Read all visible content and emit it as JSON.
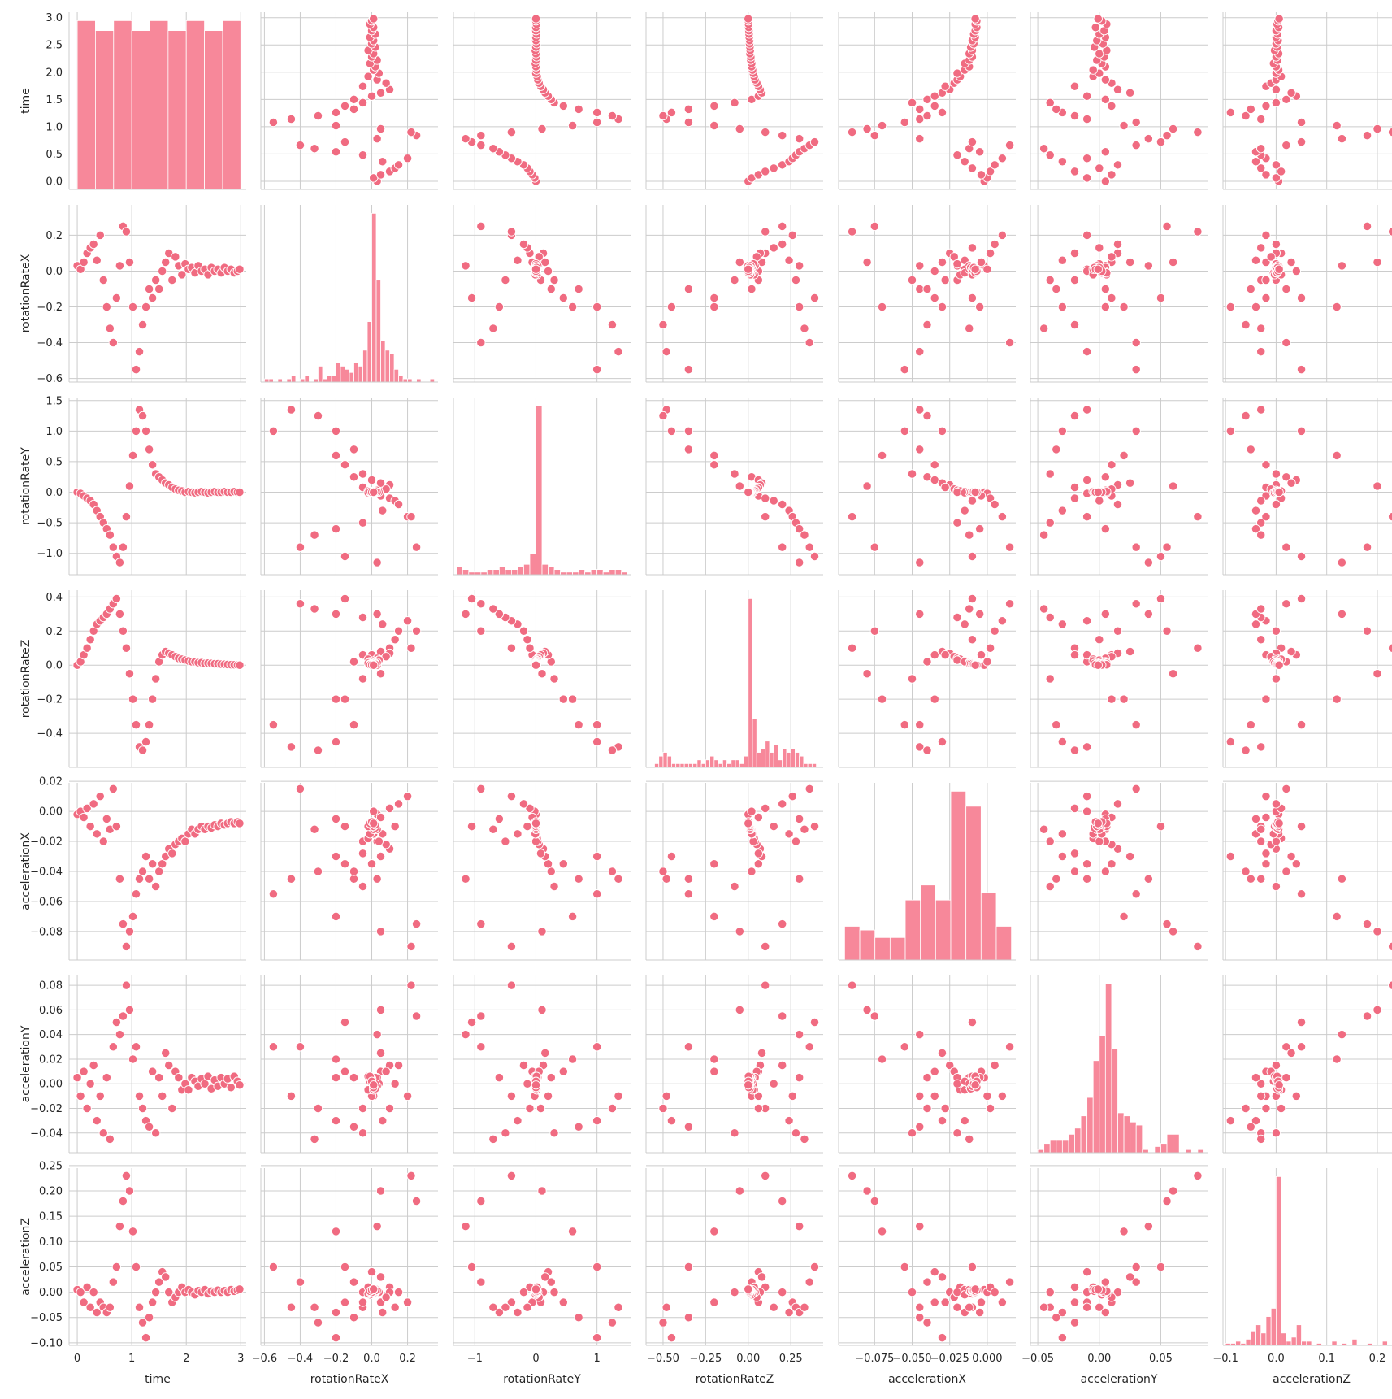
{
  "chart_data": {
    "type": "scatter",
    "kind": "pairplot",
    "diagonal": "hist",
    "grid": true,
    "color": "#f06b81",
    "hist_color": "#f7889a",
    "variables": [
      "time",
      "rotationRateX",
      "rotationRateY",
      "rotationRateZ",
      "accelerationX",
      "accelerationY",
      "accelerationZ"
    ],
    "axes": {
      "time": {
        "lim": [
          -0.15,
          3.1
        ],
        "ticks": [
          0,
          1,
          2,
          3
        ],
        "tick_labels": [
          "0",
          "1",
          "2",
          "3"
        ],
        "row_ticks": [
          0.0,
          0.5,
          1.0,
          1.5,
          2.0,
          2.5,
          3.0
        ],
        "row_tick_labels": [
          "0.0",
          "0.5",
          "1.0",
          "1.5",
          "2.0",
          "2.5",
          "3.0"
        ]
      },
      "rotationRateX": {
        "lim": [
          -0.62,
          0.37
        ],
        "ticks": [
          -0.6,
          -0.4,
          -0.2,
          0.0,
          0.2
        ],
        "tick_labels": [
          "−0.6",
          "−0.4",
          "−0.2",
          "0.0",
          "0.2"
        ],
        "row_ticks": [
          -0.6,
          -0.4,
          -0.2,
          0.0,
          0.2
        ],
        "row_tick_labels": [
          "−0.6",
          "−0.4",
          "−0.2",
          "0.0",
          "0.2"
        ]
      },
      "rotationRateY": {
        "lim": [
          -1.35,
          1.55
        ],
        "ticks": [
          -1,
          0,
          1
        ],
        "tick_labels": [
          "−1",
          "0",
          "1"
        ],
        "row_ticks": [
          -1.0,
          -0.5,
          0.0,
          0.5,
          1.0,
          1.5
        ],
        "row_tick_labels": [
          "−1.0",
          "−0.5",
          "0.0",
          "0.5",
          "1.0",
          "1.5"
        ]
      },
      "rotationRateZ": {
        "lim": [
          -0.6,
          0.44
        ],
        "ticks": [
          -0.5,
          -0.25,
          0.0,
          0.25
        ],
        "tick_labels": [
          "−0.50",
          "−0.25",
          "0.00",
          "0.25"
        ],
        "row_ticks": [
          -0.4,
          -0.2,
          0.0,
          0.2,
          0.4
        ],
        "row_tick_labels": [
          "−0.4",
          "−0.2",
          "0.0",
          "0.2",
          "0.4"
        ]
      },
      "accelerationX": {
        "lim": [
          -0.099,
          0.019
        ],
        "ticks": [
          -0.075,
          -0.05,
          -0.025,
          0.0
        ],
        "tick_labels": [
          "−0.075",
          "−0.050",
          "−0.025",
          "0.000"
        ],
        "row_ticks": [
          -0.08,
          -0.06,
          -0.04,
          -0.02,
          0.0,
          0.02
        ],
        "row_tick_labels": [
          "−0.08",
          "−0.06",
          "−0.04",
          "−0.02",
          "0.00",
          "0.02"
        ]
      },
      "accelerationY": {
        "lim": [
          -0.056,
          0.088
        ],
        "ticks": [
          -0.05,
          0.0,
          0.05
        ],
        "tick_labels": [
          "−0.05",
          "0.00",
          "0.05"
        ],
        "row_ticks": [
          -0.04,
          -0.02,
          0.0,
          0.02,
          0.04,
          0.06,
          0.08
        ],
        "row_tick_labels": [
          "−0.04",
          "−0.02",
          "0.00",
          "0.02",
          "0.04",
          "0.06",
          "0.08"
        ]
      },
      "accelerationZ": {
        "lim": [
          -0.105,
          0.245
        ],
        "ticks": [
          -0.1,
          0.0,
          0.1,
          0.2
        ],
        "tick_labels": [
          "−0.1",
          "0.0",
          "0.1",
          "0.2"
        ],
        "row_ticks": [
          -0.1,
          -0.05,
          0.0,
          0.05,
          0.1,
          0.15,
          0.2,
          0.25
        ],
        "row_tick_labels": [
          "−0.10",
          "−0.05",
          "0.00",
          "0.05",
          "0.10",
          "0.15",
          "0.20",
          "0.25"
        ]
      }
    },
    "histograms": {
      "time": {
        "edges": [
          0.0,
          0.3333,
          0.6667,
          1.0,
          1.3333,
          1.6667,
          2.0,
          2.3333,
          2.6667,
          3.0
        ],
        "counts": [
          17,
          16,
          17,
          16,
          17,
          16,
          17,
          16,
          17
        ]
      },
      "rotationRateX": {
        "edges": [
          -0.6,
          -0.575,
          -0.55,
          -0.525,
          -0.5,
          -0.475,
          -0.45,
          -0.425,
          -0.4,
          -0.375,
          -0.35,
          -0.325,
          -0.3,
          -0.275,
          -0.25,
          -0.225,
          -0.2,
          -0.175,
          -0.15,
          -0.125,
          -0.1,
          -0.075,
          -0.05,
          -0.025,
          0.0,
          0.025,
          0.05,
          0.075,
          0.1,
          0.125,
          0.15,
          0.175,
          0.2,
          0.225,
          0.25,
          0.275,
          0.3,
          0.325,
          0.35
        ],
        "counts": [
          1,
          1,
          0,
          1,
          0,
          1,
          2,
          0,
          1,
          2,
          0,
          1,
          5,
          1,
          2,
          2,
          6,
          5,
          4,
          3,
          6,
          5,
          10,
          19,
          53,
          32,
          13,
          10,
          9,
          4,
          2,
          1,
          1,
          0,
          1,
          0,
          0,
          1
        ]
      },
      "rotationRateY": {
        "edges": [
          -1.3,
          -1.2,
          -1.1,
          -1.0,
          -0.9,
          -0.8,
          -0.7,
          -0.6,
          -0.5,
          -0.4,
          -0.3,
          -0.2,
          -0.1,
          0.0,
          0.1,
          0.2,
          0.3,
          0.4,
          0.5,
          0.6,
          0.7,
          0.8,
          0.9,
          1.0,
          1.1,
          1.2,
          1.3,
          1.4,
          1.5
        ],
        "counts": [
          3,
          2,
          1,
          1,
          1,
          2,
          2,
          3,
          2,
          2,
          3,
          4,
          8,
          65,
          4,
          3,
          2,
          1,
          1,
          1,
          2,
          1,
          2,
          2,
          1,
          2,
          2,
          1
        ]
      },
      "rotationRateZ": {
        "edges": [
          -0.55,
          -0.525,
          -0.5,
          -0.475,
          -0.45,
          -0.425,
          -0.4,
          -0.375,
          -0.35,
          -0.325,
          -0.3,
          -0.275,
          -0.25,
          -0.225,
          -0.2,
          -0.175,
          -0.15,
          -0.125,
          -0.1,
          -0.075,
          -0.05,
          -0.025,
          0.0,
          0.025,
          0.05,
          0.075,
          0.1,
          0.125,
          0.15,
          0.175,
          0.2,
          0.225,
          0.25,
          0.275,
          0.3,
          0.325,
          0.35,
          0.375,
          0.4
        ],
        "counts": [
          1,
          3,
          4,
          3,
          1,
          1,
          1,
          1,
          1,
          1,
          2,
          1,
          2,
          3,
          2,
          1,
          2,
          1,
          2,
          2,
          1,
          3,
          45,
          13,
          4,
          5,
          7,
          4,
          6,
          2,
          5,
          4,
          5,
          4,
          3,
          1,
          1,
          1
        ]
      },
      "accelerationX": {
        "edges": [
          -0.095,
          -0.0849,
          -0.0748,
          -0.0647,
          -0.0546,
          -0.0445,
          -0.0344,
          -0.0243,
          -0.0142,
          -0.0041,
          0.006,
          0.0161
        ],
        "counts": [
          9,
          8,
          6,
          6,
          16,
          20,
          16,
          45,
          41,
          18,
          9
        ]
      },
      "accelerationY": {
        "edges": [
          -0.05,
          -0.045,
          -0.04,
          -0.035,
          -0.03,
          -0.025,
          -0.02,
          -0.015,
          -0.01,
          -0.005,
          0.0,
          0.005,
          0.01,
          0.015,
          0.02,
          0.025,
          0.03,
          0.035,
          0.04,
          0.045,
          0.05,
          0.055,
          0.06,
          0.065,
          0.07,
          0.075,
          0.08,
          0.085
        ],
        "counts": [
          1,
          3,
          4,
          4,
          4,
          6,
          8,
          12,
          18,
          30,
          38,
          55,
          34,
          13,
          12,
          10,
          9,
          1,
          0,
          2,
          3,
          6,
          6,
          0,
          1,
          0,
          1
        ]
      },
      "accelerationZ": {
        "edges": [
          -0.1,
          -0.09,
          -0.08,
          -0.07,
          -0.06,
          -0.05,
          -0.04,
          -0.03,
          -0.02,
          -0.01,
          0.0,
          0.01,
          0.02,
          0.03,
          0.04,
          0.05,
          0.06,
          0.07,
          0.08,
          0.09,
          0.1,
          0.11,
          0.12,
          0.13,
          0.14,
          0.15,
          0.16,
          0.17,
          0.18,
          0.19,
          0.2,
          0.21,
          0.22,
          0.23,
          0.24
        ],
        "counts": [
          1,
          1,
          2,
          1,
          3,
          7,
          10,
          6,
          14,
          18,
          82,
          6,
          2,
          4,
          10,
          2,
          2,
          0,
          1,
          0,
          0,
          2,
          0,
          1,
          0,
          3,
          0,
          0,
          1,
          0,
          0,
          2,
          0,
          1
        ]
      }
    },
    "samples": [
      [
        0.0,
        0.03,
        0.0,
        0.0,
        -0.002,
        0.005,
        0.005
      ],
      [
        0.06,
        0.01,
        -0.02,
        0.02,
        0.0,
        -0.01,
        0.0
      ],
      [
        0.12,
        0.05,
        -0.06,
        0.06,
        -0.004,
        0.01,
        -0.02
      ],
      [
        0.18,
        0.1,
        -0.1,
        0.1,
        0.002,
        -0.02,
        0.01
      ],
      [
        0.24,
        0.13,
        -0.14,
        0.15,
        -0.01,
        0.0,
        -0.03
      ],
      [
        0.3,
        0.15,
        -0.2,
        0.2,
        0.005,
        0.015,
        0.0
      ],
      [
        0.36,
        0.06,
        -0.3,
        0.24,
        -0.015,
        -0.03,
        -0.04
      ],
      [
        0.42,
        0.2,
        -0.4,
        0.26,
        0.01,
        -0.01,
        -0.02
      ],
      [
        0.48,
        -0.05,
        -0.5,
        0.28,
        -0.02,
        -0.04,
        -0.03
      ],
      [
        0.54,
        -0.2,
        -0.6,
        0.3,
        -0.005,
        0.005,
        -0.04
      ],
      [
        0.6,
        -0.32,
        -0.7,
        0.33,
        -0.012,
        -0.045,
        -0.03
      ],
      [
        0.66,
        -0.4,
        -0.9,
        0.36,
        0.015,
        0.03,
        0.02
      ],
      [
        0.72,
        -0.15,
        -1.05,
        0.39,
        -0.01,
        0.05,
        0.05
      ],
      [
        0.78,
        0.03,
        -1.15,
        0.3,
        -0.045,
        0.04,
        0.13
      ],
      [
        0.84,
        0.25,
        -0.9,
        0.2,
        -0.075,
        0.055,
        0.18
      ],
      [
        0.9,
        0.22,
        -0.4,
        0.1,
        -0.09,
        0.08,
        0.23
      ],
      [
        0.96,
        0.05,
        0.1,
        -0.05,
        -0.08,
        0.06,
        0.2
      ],
      [
        1.02,
        -0.2,
        0.6,
        -0.2,
        -0.07,
        0.02,
        0.12
      ],
      [
        1.08,
        -0.55,
        1.0,
        -0.35,
        -0.055,
        0.03,
        0.05
      ],
      [
        1.14,
        -0.45,
        1.35,
        -0.48,
        -0.045,
        -0.01,
        -0.03
      ],
      [
        1.2,
        -0.3,
        1.25,
        -0.5,
        -0.04,
        -0.02,
        -0.06
      ],
      [
        1.26,
        -0.2,
        1.0,
        -0.45,
        -0.03,
        -0.03,
        -0.09
      ],
      [
        1.32,
        -0.1,
        0.7,
        -0.35,
        -0.045,
        -0.035,
        -0.05
      ],
      [
        1.38,
        -0.15,
        0.45,
        -0.2,
        -0.035,
        0.01,
        -0.02
      ],
      [
        1.44,
        -0.05,
        0.3,
        -0.08,
        -0.05,
        -0.04,
        0.0
      ],
      [
        1.5,
        -0.1,
        0.25,
        0.02,
        -0.04,
        0.005,
        0.02
      ],
      [
        1.56,
        0.0,
        0.2,
        0.06,
        -0.035,
        -0.01,
        0.04
      ],
      [
        1.62,
        0.05,
        0.15,
        0.08,
        -0.03,
        0.025,
        0.03
      ],
      [
        1.68,
        0.1,
        0.12,
        0.07,
        -0.025,
        0.015,
        0.0
      ],
      [
        1.74,
        -0.05,
        0.08,
        0.06,
        -0.028,
        -0.02,
        -0.02
      ],
      [
        1.8,
        0.08,
        0.05,
        0.05,
        -0.022,
        0.01,
        -0.01
      ],
      [
        1.86,
        0.03,
        0.03,
        0.04,
        -0.02,
        0.005,
        0.0
      ],
      [
        1.92,
        -0.02,
        0.02,
        0.035,
        -0.018,
        -0.005,
        0.01
      ],
      [
        1.98,
        0.04,
        0.0,
        0.03,
        -0.02,
        0.0,
        0.0
      ],
      [
        2.04,
        0.01,
        0.01,
        0.025,
        -0.015,
        -0.005,
        0.005
      ],
      [
        2.1,
        0.02,
        0.0,
        0.02,
        -0.012,
        0.005,
        0.0
      ],
      [
        2.16,
        -0.01,
        -0.01,
        0.02,
        -0.015,
        0.002,
        -0.005
      ],
      [
        2.22,
        0.03,
        0.0,
        0.015,
        -0.012,
        -0.002,
        0.003
      ],
      [
        2.28,
        0.0,
        0.01,
        0.015,
        -0.01,
        0.004,
        0.0
      ],
      [
        2.34,
        0.01,
        0.0,
        0.01,
        -0.012,
        0.0,
        0.005
      ],
      [
        2.4,
        -0.02,
        -0.01,
        0.012,
        -0.01,
        0.006,
        -0.003
      ],
      [
        2.46,
        0.02,
        0.0,
        0.01,
        -0.011,
        -0.004,
        0.002
      ],
      [
        2.52,
        0.0,
        0.01,
        0.008,
        -0.009,
        0.003,
        0.0
      ],
      [
        2.58,
        0.01,
        0.0,
        0.008,
        -0.01,
        -0.002,
        0.004
      ],
      [
        2.64,
        -0.01,
        0.0,
        0.006,
        -0.008,
        0.005,
        0.0
      ],
      [
        2.7,
        0.02,
        0.01,
        0.005,
        -0.009,
        0.0,
        0.003
      ],
      [
        2.76,
        0.0,
        0.0,
        0.004,
        -0.008,
        0.004,
        0.0
      ],
      [
        2.82,
        0.01,
        0.0,
        0.003,
        -0.007,
        -0.003,
        0.005
      ],
      [
        2.88,
        -0.01,
        0.01,
        0.002,
        -0.008,
        0.006,
        0.002
      ],
      [
        2.94,
        0.0,
        0.0,
        0.001,
        -0.007,
        0.002,
        0.004
      ],
      [
        2.98,
        0.01,
        0.0,
        0.0,
        -0.008,
        -0.001,
        0.006
      ]
    ]
  }
}
